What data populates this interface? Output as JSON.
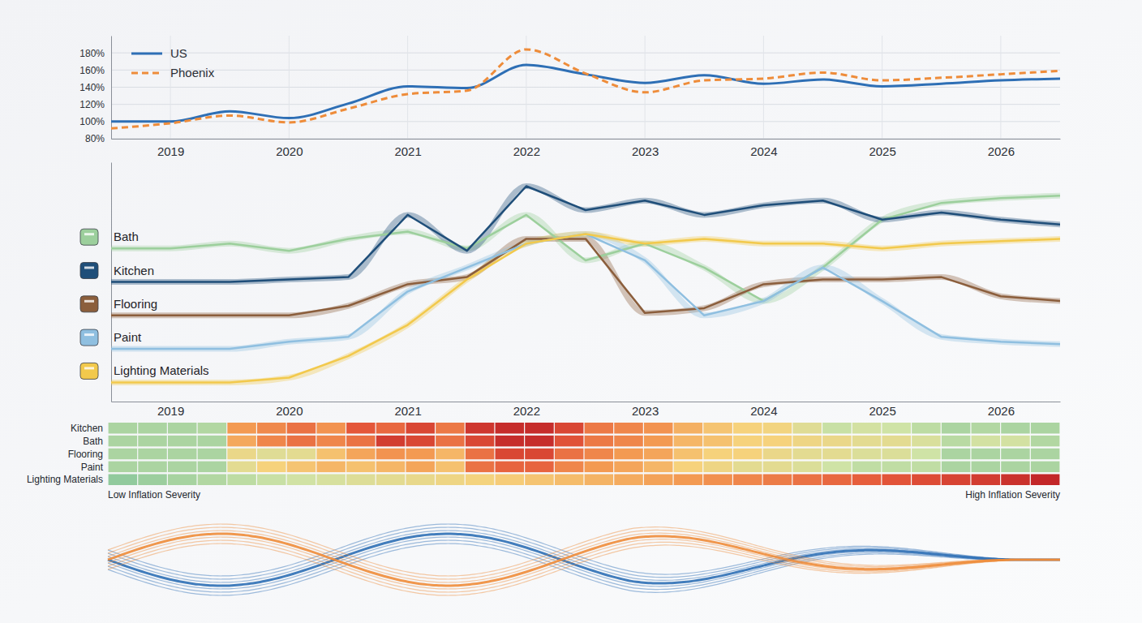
{
  "chart_data": [
    {
      "type": "line",
      "x": [
        2018.5,
        2019,
        2019.5,
        2020,
        2020.5,
        2021,
        2021.5,
        2022,
        2022.5,
        2023,
        2023.5,
        2024,
        2024.5,
        2025,
        2025.5,
        2026,
        2026.5
      ],
      "xlim": [
        2018.5,
        2026.5
      ],
      "xticks": [
        2019,
        2020,
        2021,
        2022,
        2023,
        2024,
        2025,
        2026
      ],
      "ylim": [
        80,
        200
      ],
      "yticks": [
        {
          "value": 80,
          "label": "80%"
        },
        {
          "value": 100,
          "label": "100%"
        },
        {
          "value": 120,
          "label": "120%"
        },
        {
          "value": 140,
          "label": "140%"
        },
        {
          "value": 160,
          "label": "160%"
        },
        {
          "value": 180,
          "label": "180%"
        }
      ],
      "grid": true,
      "legend": "upper left",
      "series": [
        {
          "name": "US",
          "color": "#2e6fb5",
          "line_style": "solid",
          "values": [
            100,
            100,
            112,
            104,
            121,
            141,
            139,
            166,
            155,
            145,
            154,
            144,
            149,
            141,
            144,
            148,
            150
          ]
        },
        {
          "name": "Phoenix",
          "color": "#ee8c3a",
          "line_style": "dashed",
          "values": [
            92,
            98,
            107,
            99,
            115,
            132,
            136,
            184,
            156,
            134,
            148,
            150,
            157,
            148,
            151,
            155,
            159
          ]
        }
      ]
    },
    {
      "type": "line",
      "x": [
        2018.5,
        2019,
        2019.5,
        2020,
        2020.5,
        2021,
        2021.5,
        2022,
        2022.5,
        2023,
        2023.5,
        2024,
        2024.5,
        2025,
        2025.5,
        2026,
        2026.5
      ],
      "xlim": [
        2018.5,
        2026.5
      ],
      "xticks": [
        2019,
        2020,
        2021,
        2022,
        2023,
        2024,
        2025,
        2026
      ],
      "ylim": [
        0,
        100
      ],
      "tick_labels": "x",
      "legend": "left",
      "series": [
        {
          "name": "Bath",
          "color": "#9ccf9c",
          "values": [
            64,
            64,
            66,
            63,
            68,
            71,
            64,
            78,
            59,
            66,
            56,
            42,
            56,
            76,
            83,
            85,
            86
          ]
        },
        {
          "name": "Kitchen",
          "color": "#1f4e79",
          "values": [
            50,
            50,
            50,
            51,
            52,
            78,
            63,
            90,
            80,
            84,
            78,
            82,
            84,
            76,
            79,
            76,
            74
          ]
        },
        {
          "name": "Flooring",
          "color": "#8b5e3c",
          "values": [
            36,
            36,
            36,
            36,
            40,
            49,
            52,
            68,
            68,
            37,
            39,
            49,
            51,
            51,
            52,
            44,
            42
          ]
        },
        {
          "name": "Paint",
          "color": "#8fbfe0",
          "values": [
            22,
            22,
            22,
            25,
            27,
            46,
            56,
            66,
            70,
            59,
            36,
            42,
            56,
            42,
            27,
            25,
            24
          ]
        },
        {
          "name": "Lighting Materials",
          "color": "#f2c94c",
          "values": [
            8,
            8,
            8,
            10,
            19,
            32,
            51,
            66,
            70,
            66,
            68,
            66,
            66,
            64,
            66,
            67,
            68
          ]
        }
      ]
    },
    {
      "type": "heatmap",
      "rows": [
        "Kitchen",
        "Bath",
        "Flooring",
        "Paint",
        "Lighting Materials"
      ],
      "x": [
        2019,
        2020,
        2021,
        2022,
        2023,
        2024,
        2025,
        2026
      ],
      "tick_labels": "y",
      "cells": [
        [
          [
            10,
            10,
            10,
            12
          ],
          [
            60,
            65,
            72,
            62
          ],
          [
            80,
            75,
            86,
            70
          ],
          [
            92,
            96,
            96,
            86
          ],
          [
            70,
            66,
            62,
            52
          ],
          [
            45,
            40,
            38,
            28
          ],
          [
            18,
            22,
            20,
            15
          ],
          [
            10,
            12,
            10,
            10
          ]
        ],
        [
          [
            10,
            10,
            10,
            10
          ],
          [
            55,
            66,
            72,
            66
          ],
          [
            72,
            90,
            86,
            72
          ],
          [
            86,
            96,
            96,
            82
          ],
          [
            70,
            66,
            60,
            50
          ],
          [
            46,
            40,
            40,
            36
          ],
          [
            34,
            30,
            30,
            25
          ],
          [
            14,
            22,
            22,
            12
          ]
        ],
        [
          [
            10,
            10,
            10,
            10
          ],
          [
            34,
            28,
            30,
            46
          ],
          [
            56,
            62,
            60,
            50
          ],
          [
            72,
            86,
            86,
            72
          ],
          [
            66,
            60,
            56,
            46
          ],
          [
            40,
            40,
            34,
            30
          ],
          [
            30,
            26,
            26,
            20
          ],
          [
            10,
            10,
            10,
            10
          ]
        ],
        [
          [
            10,
            10,
            10,
            10
          ],
          [
            30,
            40,
            45,
            50
          ],
          [
            46,
            50,
            56,
            46
          ],
          [
            72,
            76,
            76,
            66
          ],
          [
            60,
            56,
            50,
            40
          ],
          [
            36,
            30,
            30,
            26
          ],
          [
            20,
            16,
            16,
            16
          ],
          [
            10,
            10,
            10,
            10
          ]
        ],
        [
          [
            3,
            6,
            9,
            12
          ],
          [
            15,
            18,
            21,
            24
          ],
          [
            27,
            30,
            33,
            36
          ],
          [
            39,
            42,
            45,
            48
          ],
          [
            51,
            54,
            57,
            60
          ],
          [
            63,
            66,
            69,
            72
          ],
          [
            75,
            78,
            81,
            84
          ],
          [
            87,
            90,
            94,
            98
          ]
        ]
      ],
      "colorbar": {
        "range": [
          0,
          100
        ],
        "labels": [
          "Low Inflation Severity",
          "High Inflation Severity"
        ]
      }
    }
  ]
}
